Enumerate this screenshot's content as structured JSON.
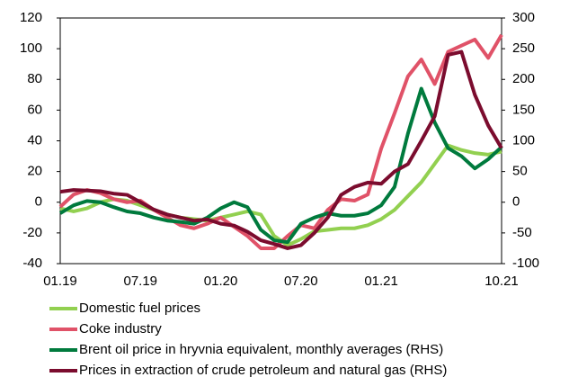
{
  "chart_data": {
    "type": "line",
    "categories": [
      "01.19",
      null,
      null,
      null,
      null,
      null,
      "07.19",
      null,
      null,
      null,
      null,
      null,
      "01.20",
      null,
      null,
      null,
      null,
      null,
      "07.20",
      null,
      null,
      null,
      null,
      null,
      "01.21",
      null,
      null,
      null,
      null,
      null,
      null,
      null,
      null,
      "10.21"
    ],
    "ylim": [
      -40,
      120
    ],
    "yticks": [
      -40,
      -20,
      0,
      20,
      40,
      60,
      80,
      100,
      120
    ],
    "y2lim": [
      -100,
      300
    ],
    "y2ticks": [
      -100,
      -50,
      0,
      50,
      100,
      150,
      200,
      250,
      300
    ],
    "series": [
      {
        "name": "Domestic fuel prices",
        "color": "#92d050",
        "values": [
          -4,
          -6,
          -4,
          0,
          2,
          1,
          -2,
          -5,
          -8,
          -10,
          -11,
          -12,
          -10,
          -8,
          -6,
          -8,
          -22,
          -28,
          -24,
          -19,
          -18,
          -17,
          -17,
          -15,
          -11,
          -5,
          4,
          13,
          25,
          37,
          34,
          32,
          31,
          33
        ]
      },
      {
        "name": "Coke industry",
        "color": "#e05268",
        "values": [
          -3,
          5,
          8,
          6,
          2,
          0,
          1,
          -5,
          -10,
          -15,
          -17,
          -14,
          -10,
          -16,
          -22,
          -30,
          -30,
          -22,
          -15,
          -17,
          -5,
          2,
          1,
          5,
          35,
          58,
          82,
          93,
          77,
          98,
          102,
          106,
          94,
          109
        ]
      },
      {
        "name": "Brent oil price in hryvnia equivalent, monthly averages (RHS)",
        "color": "#007a3d",
        "axis": "y2",
        "values": [
          -18,
          -5,
          2,
          0,
          -8,
          -15,
          -18,
          -25,
          -30,
          -32,
          -35,
          -25,
          -10,
          0,
          -8,
          -45,
          -62,
          -65,
          -35,
          -25,
          -18,
          -22,
          -22,
          -18,
          -5,
          25,
          112,
          185,
          130,
          88,
          75,
          55,
          70,
          90
        ]
      },
      {
        "name": "Prices in extraction of crude petroleum and natural gas (RHS)",
        "color": "#7b0c2e",
        "axis": "y2",
        "values": [
          17,
          20,
          19,
          18,
          14,
          12,
          0,
          -12,
          -20,
          -25,
          -30,
          -28,
          -35,
          -38,
          -48,
          -62,
          -68,
          -75,
          -70,
          -50,
          -25,
          12,
          25,
          32,
          30,
          50,
          62,
          100,
          140,
          240,
          245,
          175,
          125,
          88
        ]
      }
    ]
  }
}
